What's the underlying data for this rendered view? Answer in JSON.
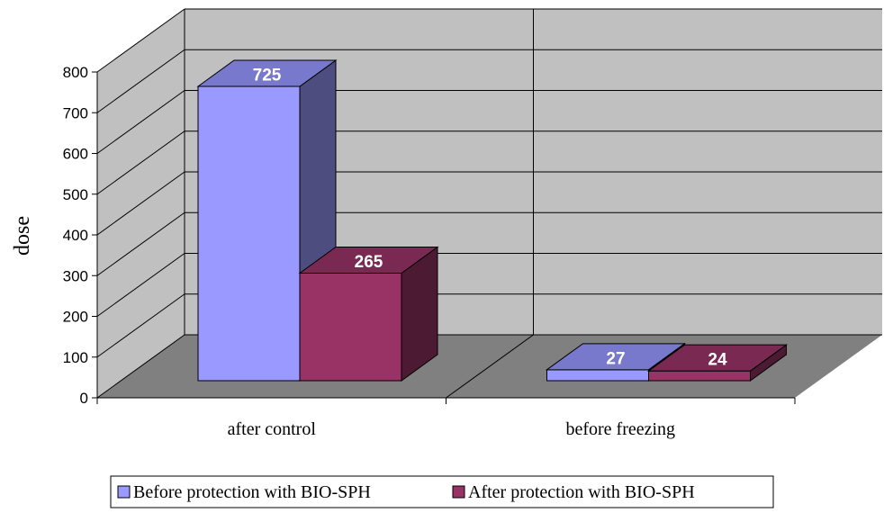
{
  "chart_data": {
    "type": "bar",
    "title": "",
    "xlabel": "",
    "ylabel": "dose",
    "ylim": [
      0,
      800
    ],
    "ytick_step": 100,
    "categories": [
      "after control",
      "before freezing"
    ],
    "series": [
      {
        "name": "Before protection with BIO-SPH",
        "values": [
          725,
          27
        ],
        "color": "#9999ff",
        "side_color": "#4d4d80",
        "top_color": "#7878cc"
      },
      {
        "name": "After protection with BIO-SPH",
        "values": [
          265,
          24
        ],
        "color": "#993366",
        "side_color": "#4d1a33",
        "top_color": "#7a2952"
      }
    ],
    "data_labels": true,
    "grid": true,
    "three_d": true,
    "legend_position": "bottom",
    "colors": {
      "back_wall": "#c0c0c0",
      "side_wall": "#c0c0c0",
      "floor": "#808080",
      "gridline": "#000000",
      "data_label": "#ffffff"
    }
  }
}
